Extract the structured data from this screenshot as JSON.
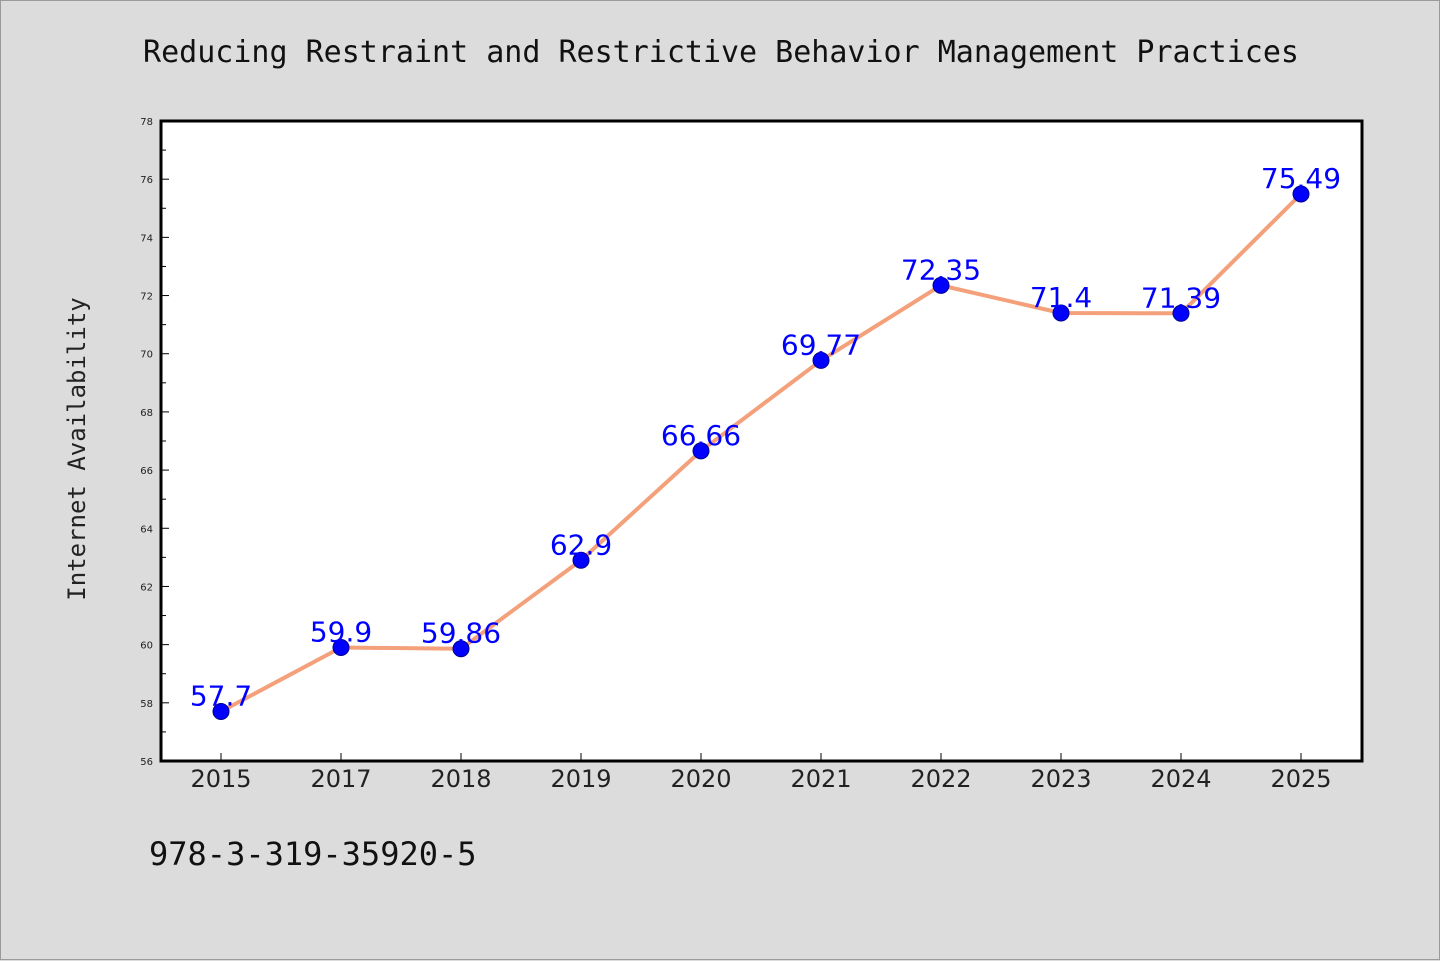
{
  "chart_data": {
    "type": "line",
    "title": "Reducing Restraint and Restrictive Behavior Management Practices",
    "xlabel": "",
    "ylabel": "Internet Availability",
    "categories": [
      "2015",
      "2017",
      "2018",
      "2019",
      "2020",
      "2021",
      "2022",
      "2023",
      "2024",
      "2025"
    ],
    "series": [
      {
        "values": [
          57.7,
          59.9,
          59.86,
          62.9,
          66.66,
          69.77,
          72.35,
          71.4,
          71.39,
          75.49
        ],
        "labels": [
          "57.7",
          "59.9",
          "59.86",
          "62.9",
          "66.66",
          "69.77",
          "72.35",
          "71.4",
          "71.39",
          "75.49"
        ]
      }
    ],
    "ylim": [
      56,
      78
    ],
    "yticks": [
      "56",
      "58",
      "60",
      "62",
      "64",
      "66",
      "68",
      "70",
      "72",
      "74",
      "76",
      "78"
    ],
    "grid": false,
    "colors": {
      "line": "#f4a07a",
      "marker": "#0000ff",
      "label": "#0000ff",
      "plot_bg": "#ffffff",
      "page_bg": "#dcdcdc"
    }
  },
  "footer": {
    "isbn": "978-3-319-35920-5"
  }
}
